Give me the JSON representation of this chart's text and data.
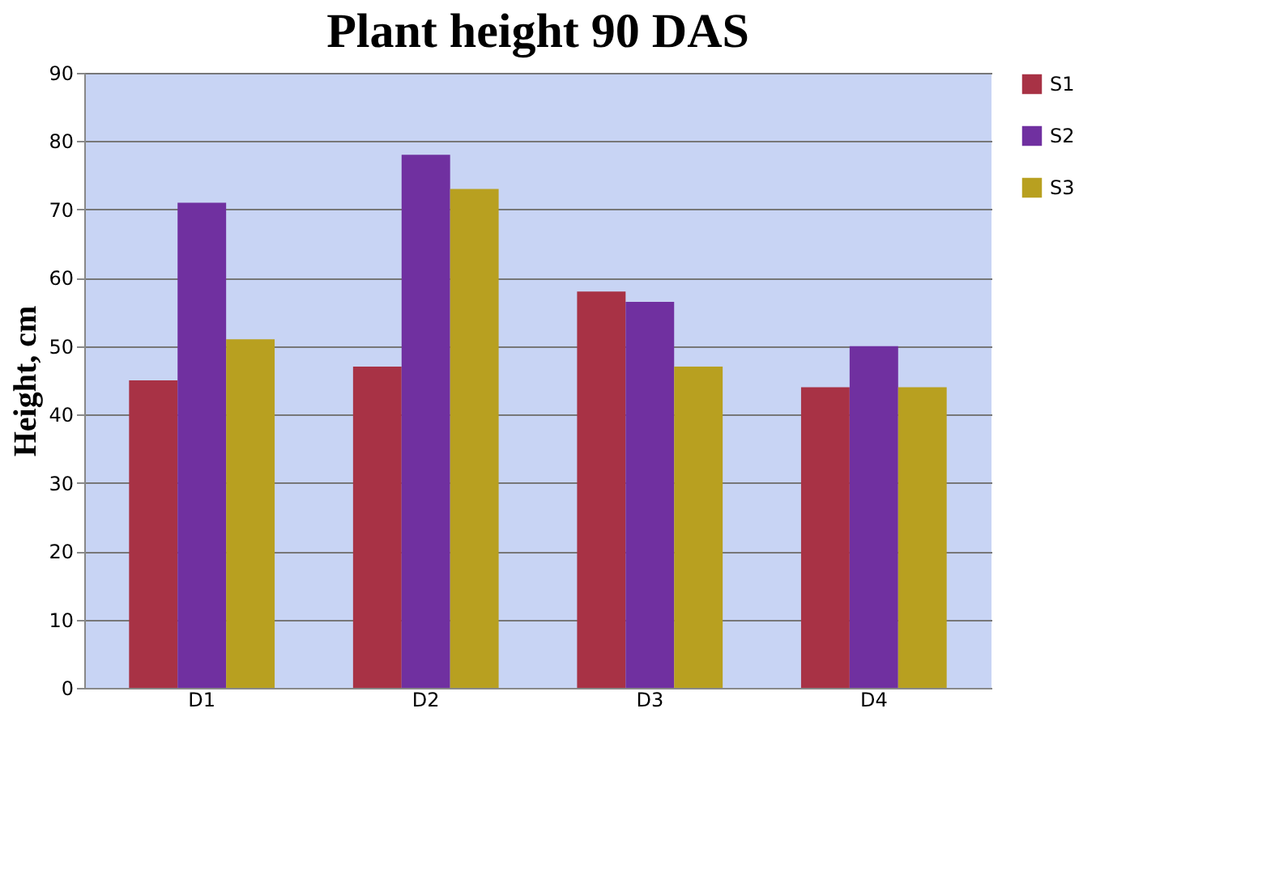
{
  "chart_data": {
    "type": "bar",
    "title": "Plant height 90 DAS",
    "ylabel": "Height, cm",
    "categories": [
      "D1",
      "D2",
      "D3",
      "D4"
    ],
    "series": [
      {
        "name": "S1",
        "color": "#a83245",
        "values": [
          45,
          47,
          58,
          44
        ]
      },
      {
        "name": "S2",
        "color": "#7030a0",
        "values": [
          71,
          78,
          56.5,
          50
        ]
      },
      {
        "name": "S3",
        "color": "#b8a020",
        "values": [
          51,
          73,
          47,
          44
        ]
      }
    ],
    "ylim": [
      0,
      90
    ],
    "yticks": [
      0,
      10,
      20,
      30,
      40,
      50,
      60,
      70,
      80,
      90
    ],
    "grid": "y",
    "legend": "right"
  }
}
